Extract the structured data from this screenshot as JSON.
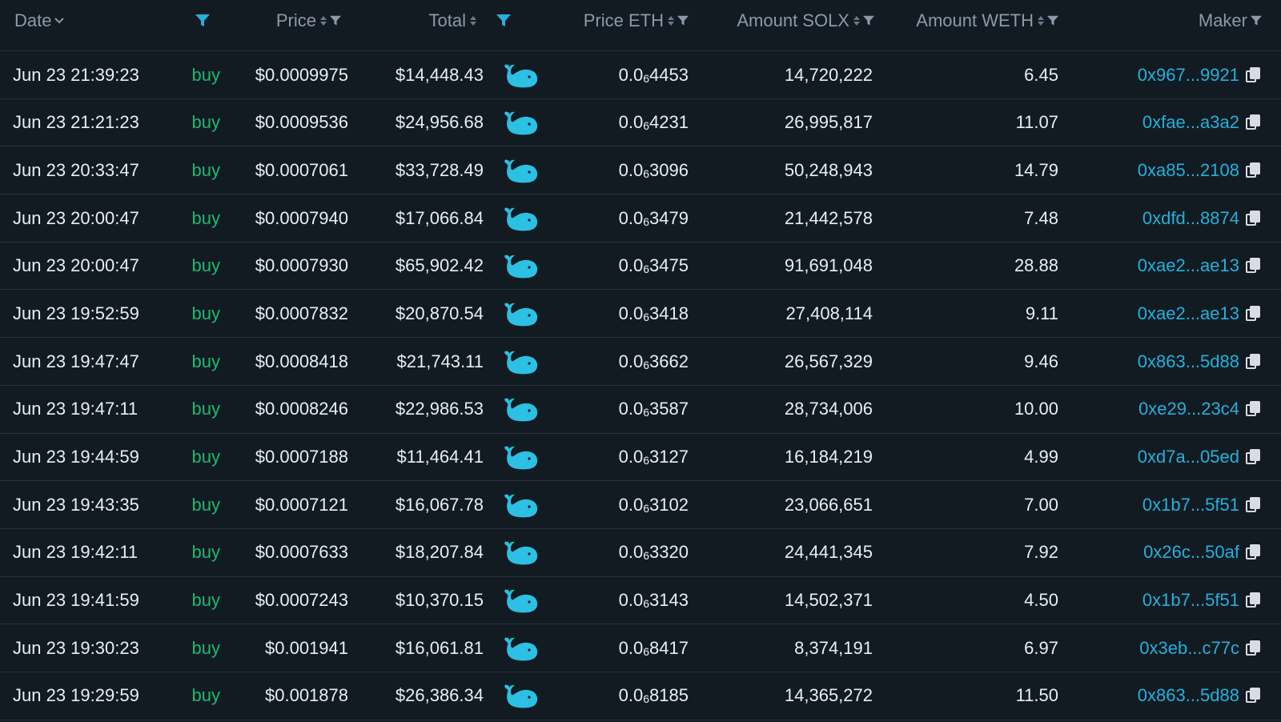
{
  "colors": {
    "background": "#131b22",
    "header_text": "#8a9aa9",
    "row_text": "#e9eef3",
    "buy": "#1fb86e",
    "accent": "#24b0dc",
    "divider": "#26313b"
  },
  "header": {
    "date": "Date",
    "price": "Price",
    "total": "Total",
    "price_eth": "Price ETH",
    "amount_solx": "Amount SOLX",
    "amount_weth": "Amount WETH",
    "maker": "Maker"
  },
  "icons": {
    "whale": "whale-icon",
    "copy": "copy-icon",
    "filter": "filter-icon",
    "sort": "sort-icon",
    "chevron": "chevron-down-icon"
  },
  "rows": [
    {
      "date": "Jun 23 21:39:23",
      "type": "buy",
      "price": "$0.0009975",
      "total": "$14,448.43",
      "peth_a": "0.0",
      "peth_sub": "6",
      "peth_b": "4453",
      "solx": "14,720,222",
      "weth": "6.45",
      "maker": "0x967...9921"
    },
    {
      "date": "Jun 23 21:21:23",
      "type": "buy",
      "price": "$0.0009536",
      "total": "$24,956.68",
      "peth_a": "0.0",
      "peth_sub": "6",
      "peth_b": "4231",
      "solx": "26,995,817",
      "weth": "11.07",
      "maker": "0xfae...a3a2"
    },
    {
      "date": "Jun 23 20:33:47",
      "type": "buy",
      "price": "$0.0007061",
      "total": "$33,728.49",
      "peth_a": "0.0",
      "peth_sub": "6",
      "peth_b": "3096",
      "solx": "50,248,943",
      "weth": "14.79",
      "maker": "0xa85...2108"
    },
    {
      "date": "Jun 23 20:00:47",
      "type": "buy",
      "price": "$0.0007940",
      "total": "$17,066.84",
      "peth_a": "0.0",
      "peth_sub": "6",
      "peth_b": "3479",
      "solx": "21,442,578",
      "weth": "7.48",
      "maker": "0xdfd...8874"
    },
    {
      "date": "Jun 23 20:00:47",
      "type": "buy",
      "price": "$0.0007930",
      "total": "$65,902.42",
      "peth_a": "0.0",
      "peth_sub": "6",
      "peth_b": "3475",
      "solx": "91,691,048",
      "weth": "28.88",
      "maker": "0xae2...ae13"
    },
    {
      "date": "Jun 23 19:52:59",
      "type": "buy",
      "price": "$0.0007832",
      "total": "$20,870.54",
      "peth_a": "0.0",
      "peth_sub": "6",
      "peth_b": "3418",
      "solx": "27,408,114",
      "weth": "9.11",
      "maker": "0xae2...ae13"
    },
    {
      "date": "Jun 23 19:47:47",
      "type": "buy",
      "price": "$0.0008418",
      "total": "$21,743.11",
      "peth_a": "0.0",
      "peth_sub": "6",
      "peth_b": "3662",
      "solx": "26,567,329",
      "weth": "9.46",
      "maker": "0x863...5d88"
    },
    {
      "date": "Jun 23 19:47:11",
      "type": "buy",
      "price": "$0.0008246",
      "total": "$22,986.53",
      "peth_a": "0.0",
      "peth_sub": "6",
      "peth_b": "3587",
      "solx": "28,734,006",
      "weth": "10.00",
      "maker": "0xe29...23c4"
    },
    {
      "date": "Jun 23 19:44:59",
      "type": "buy",
      "price": "$0.0007188",
      "total": "$11,464.41",
      "peth_a": "0.0",
      "peth_sub": "6",
      "peth_b": "3127",
      "solx": "16,184,219",
      "weth": "4.99",
      "maker": "0xd7a...05ed"
    },
    {
      "date": "Jun 23 19:43:35",
      "type": "buy",
      "price": "$0.0007121",
      "total": "$16,067.78",
      "peth_a": "0.0",
      "peth_sub": "6",
      "peth_b": "3102",
      "solx": "23,066,651",
      "weth": "7.00",
      "maker": "0x1b7...5f51"
    },
    {
      "date": "Jun 23 19:42:11",
      "type": "buy",
      "price": "$0.0007633",
      "total": "$18,207.84",
      "peth_a": "0.0",
      "peth_sub": "6",
      "peth_b": "3320",
      "solx": "24,441,345",
      "weth": "7.92",
      "maker": "0x26c...50af"
    },
    {
      "date": "Jun 23 19:41:59",
      "type": "buy",
      "price": "$0.0007243",
      "total": "$10,370.15",
      "peth_a": "0.0",
      "peth_sub": "6",
      "peth_b": "3143",
      "solx": "14,502,371",
      "weth": "4.50",
      "maker": "0x1b7...5f51"
    },
    {
      "date": "Jun 23 19:30:23",
      "type": "buy",
      "price": "$0.001941",
      "total": "$16,061.81",
      "peth_a": "0.0",
      "peth_sub": "6",
      "peth_b": "8417",
      "solx": "8,374,191",
      "weth": "6.97",
      "maker": "0x3eb...c77c"
    },
    {
      "date": "Jun 23 19:29:59",
      "type": "buy",
      "price": "$0.001878",
      "total": "$26,386.34",
      "peth_a": "0.0",
      "peth_sub": "6",
      "peth_b": "8185",
      "solx": "14,365,272",
      "weth": "11.50",
      "maker": "0x863...5d88"
    }
  ]
}
